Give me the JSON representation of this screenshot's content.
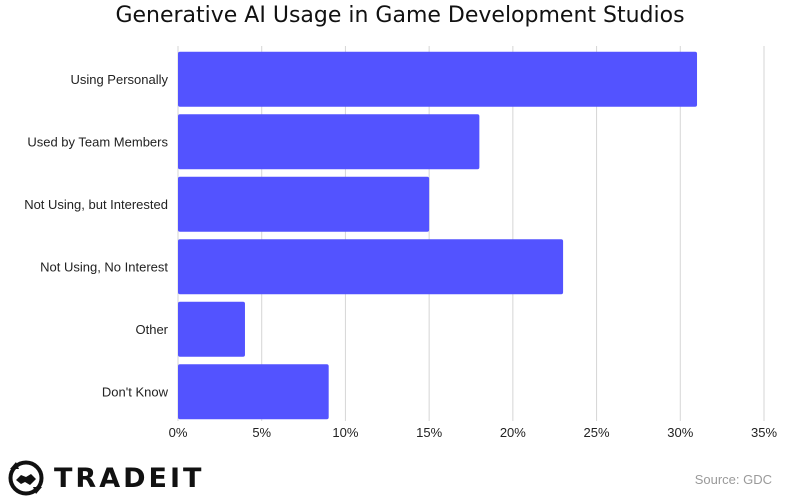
{
  "chart_data": {
    "type": "bar",
    "orientation": "horizontal",
    "title": "Generative AI Usage in Game Development Studios",
    "categories": [
      "Using Personally",
      "Used by Team Members",
      "Not Using, but Interested",
      "Not Using, No Interest",
      "Other",
      "Don't Know"
    ],
    "values": [
      31,
      18,
      15,
      23,
      4,
      9
    ],
    "x_ticks": [
      "0%",
      "5%",
      "10%",
      "15%",
      "20%",
      "25%",
      "30%",
      "35%"
    ],
    "xlim": [
      0,
      35
    ],
    "bar_color": "#5353ff",
    "grid": "vertical",
    "legend": "none"
  },
  "branding": {
    "logo_text": "TRADEIT",
    "logo_icon": "handshake-icon"
  },
  "source": "Source: GDC"
}
